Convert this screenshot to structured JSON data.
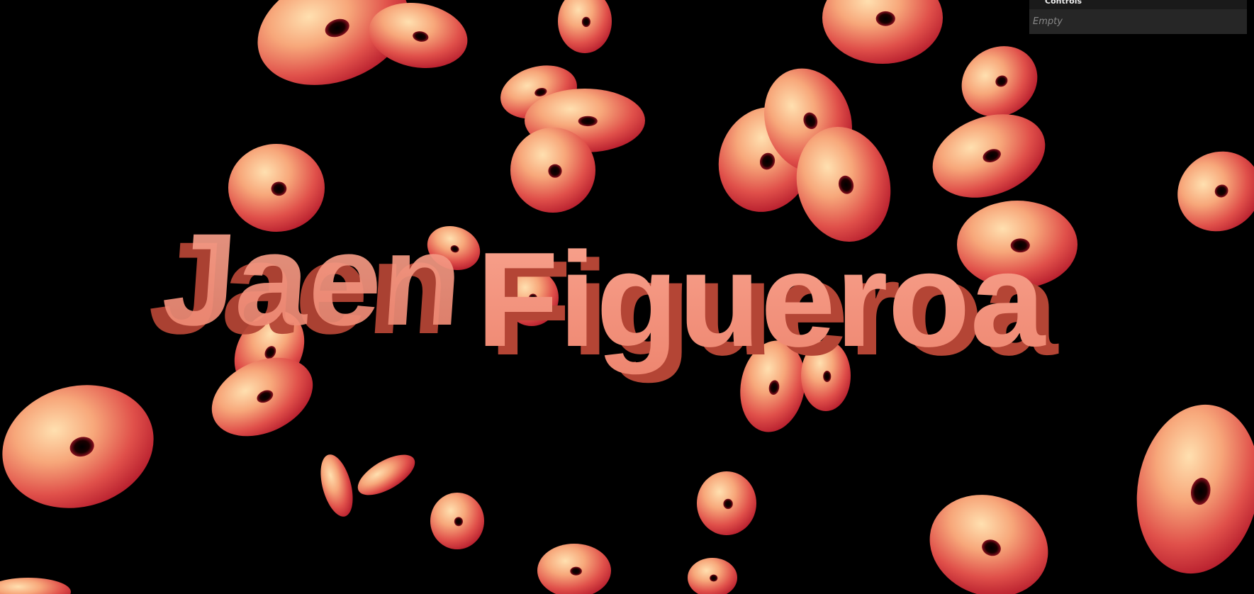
{
  "scene": {
    "headline_first": "Jaen",
    "headline_last": "Figueroa",
    "background_color": "#000000",
    "text_color": "#f08a74",
    "text_shadow_color": "#c9523f",
    "torus_colors": [
      "#c8202e",
      "#e85a4a",
      "#ffd6a0"
    ]
  },
  "gui": {
    "title": "Controls",
    "empty_label": "Empty"
  }
}
